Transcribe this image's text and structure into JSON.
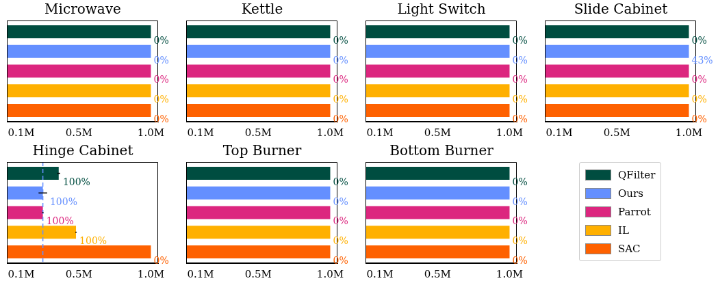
{
  "chart_data": [
    {
      "type": "bar",
      "orientation": "horizontal",
      "title": "Microwave",
      "categories": [
        null
      ],
      "xlim": [
        0,
        1.05
      ],
      "xticks": [
        {
          "value": 0.1,
          "label": "0.1M"
        },
        {
          "value": 0.5,
          "label": "0.5M"
        },
        {
          "value": 1.0,
          "label": "1.0M"
        }
      ],
      "tick_labels": "x",
      "legend": false,
      "grid": false,
      "annotations": [
        "0%",
        "0%",
        "0%",
        "0%",
        "0%"
      ],
      "series": [
        {
          "color": "#004d40",
          "values": [
            1.0
          ]
        },
        {
          "color": "#648fff",
          "values": [
            1.0
          ]
        },
        {
          "color": "#dc267f",
          "values": [
            1.0
          ]
        },
        {
          "color": "#ffb000",
          "values": [
            1.0
          ]
        },
        {
          "color": "#fe6100",
          "values": [
            1.0
          ]
        }
      ]
    },
    {
      "type": "bar",
      "orientation": "horizontal",
      "title": "Kettle",
      "categories": [
        null
      ],
      "xlim": [
        0,
        1.05
      ],
      "xticks": [
        {
          "value": 0.1,
          "label": "0.1M"
        },
        {
          "value": 0.5,
          "label": "0.5M"
        },
        {
          "value": 1.0,
          "label": "1.0M"
        }
      ],
      "tick_labels": "x",
      "legend": false,
      "grid": false,
      "annotations": [
        "0%",
        "0%",
        "0%",
        "0%",
        "0%"
      ],
      "series": [
        {
          "color": "#004d40",
          "values": [
            1.0
          ]
        },
        {
          "color": "#648fff",
          "values": [
            1.0
          ]
        },
        {
          "color": "#dc267f",
          "values": [
            1.0
          ]
        },
        {
          "color": "#ffb000",
          "values": [
            1.0
          ]
        },
        {
          "color": "#fe6100",
          "values": [
            1.0
          ]
        }
      ]
    },
    {
      "type": "bar",
      "orientation": "horizontal",
      "title": "Light Switch",
      "categories": [
        null
      ],
      "xlim": [
        0,
        1.05
      ],
      "xticks": [
        {
          "value": 0.1,
          "label": "0.1M"
        },
        {
          "value": 0.5,
          "label": "0.5M"
        },
        {
          "value": 1.0,
          "label": "1.0M"
        }
      ],
      "tick_labels": "x",
      "legend": false,
      "grid": false,
      "annotations": [
        "0%",
        "0%",
        "0%",
        "0%",
        "0%"
      ],
      "series": [
        {
          "color": "#004d40",
          "values": [
            1.0
          ]
        },
        {
          "color": "#648fff",
          "values": [
            1.0
          ]
        },
        {
          "color": "#dc267f",
          "values": [
            1.0
          ]
        },
        {
          "color": "#ffb000",
          "values": [
            1.0
          ]
        },
        {
          "color": "#fe6100",
          "values": [
            1.0
          ]
        }
      ]
    },
    {
      "type": "bar",
      "orientation": "horizontal",
      "title": "Slide Cabinet",
      "categories": [
        null
      ],
      "xlim": [
        0,
        1.05
      ],
      "xticks": [
        {
          "value": 0.1,
          "label": "0.1M"
        },
        {
          "value": 0.5,
          "label": "0.5M"
        },
        {
          "value": 1.0,
          "label": "1.0M"
        }
      ],
      "tick_labels": "x",
      "legend": false,
      "grid": false,
      "annotations": [
        "0%",
        "43%",
        "0%",
        "0%",
        "0%"
      ],
      "series": [
        {
          "color": "#004d40",
          "values": [
            1.0
          ]
        },
        {
          "color": "#648fff",
          "values": [
            1.0
          ]
        },
        {
          "color": "#dc267f",
          "values": [
            1.0
          ]
        },
        {
          "color": "#ffb000",
          "values": [
            1.0
          ]
        },
        {
          "color": "#fe6100",
          "values": [
            1.0
          ]
        }
      ]
    },
    {
      "type": "bar",
      "orientation": "horizontal",
      "title": "Hinge Cabinet",
      "categories": [
        null
      ],
      "xlim": [
        0,
        1.05
      ],
      "xticks": [
        {
          "value": 0.1,
          "label": "0.1M"
        },
        {
          "value": 0.5,
          "label": "0.5M"
        },
        {
          "value": 1.0,
          "label": "1.0M"
        }
      ],
      "tick_labels": "x",
      "legend": false,
      "grid": false,
      "ref_lines": [
        {
          "axis": "x",
          "value": 0.25,
          "color": "#648fff",
          "line_style": "dashed"
        }
      ],
      "annotations": [
        "100%",
        "100%",
        "100%",
        "100%",
        "0%"
      ],
      "series": [
        {
          "color": "#004d40",
          "values": [
            0.36
          ],
          "errors": [
            0.01
          ]
        },
        {
          "color": "#648fff",
          "values": [
            0.25
          ],
          "errors": [
            0.03
          ]
        },
        {
          "color": "#dc267f",
          "values": [
            0.25
          ],
          "errors": [
            0.005
          ]
        },
        {
          "color": "#ffb000",
          "values": [
            0.48
          ],
          "errors": [
            0.005
          ]
        },
        {
          "color": "#fe6100",
          "values": [
            1.0
          ]
        }
      ]
    },
    {
      "type": "bar",
      "orientation": "horizontal",
      "title": "Top Burner",
      "categories": [
        null
      ],
      "xlim": [
        0,
        1.05
      ],
      "xticks": [
        {
          "value": 0.1,
          "label": "0.1M"
        },
        {
          "value": 0.5,
          "label": "0.5M"
        },
        {
          "value": 1.0,
          "label": "1.0M"
        }
      ],
      "tick_labels": "x",
      "legend": false,
      "grid": false,
      "annotations": [
        "0%",
        "0%",
        "0%",
        "0%",
        "0%"
      ],
      "series": [
        {
          "color": "#004d40",
          "values": [
            1.0
          ]
        },
        {
          "color": "#648fff",
          "values": [
            1.0
          ]
        },
        {
          "color": "#dc267f",
          "values": [
            1.0
          ]
        },
        {
          "color": "#ffb000",
          "values": [
            1.0
          ]
        },
        {
          "color": "#fe6100",
          "values": [
            1.0
          ]
        }
      ]
    },
    {
      "type": "bar",
      "orientation": "horizontal",
      "title": "Bottom Burner",
      "categories": [
        null
      ],
      "xlim": [
        0,
        1.05
      ],
      "xticks": [
        {
          "value": 0.1,
          "label": "0.1M"
        },
        {
          "value": 0.5,
          "label": "0.5M"
        },
        {
          "value": 1.0,
          "label": "1.0M"
        }
      ],
      "tick_labels": "x",
      "legend": "right",
      "grid": false,
      "annotations": [
        "0%",
        "0%",
        "0%",
        "0%",
        "0%"
      ],
      "series": [
        {
          "name": "QFilter",
          "color": "#004d40",
          "values": [
            1.0
          ]
        },
        {
          "name": "Ours",
          "color": "#648fff",
          "values": [
            1.0
          ]
        },
        {
          "name": "Parrot",
          "color": "#dc267f",
          "values": [
            1.0
          ]
        },
        {
          "name": "IL",
          "color": "#ffb000",
          "values": [
            1.0
          ]
        },
        {
          "name": "SAC",
          "color": "#fe6100",
          "values": [
            1.0
          ]
        }
      ]
    }
  ]
}
